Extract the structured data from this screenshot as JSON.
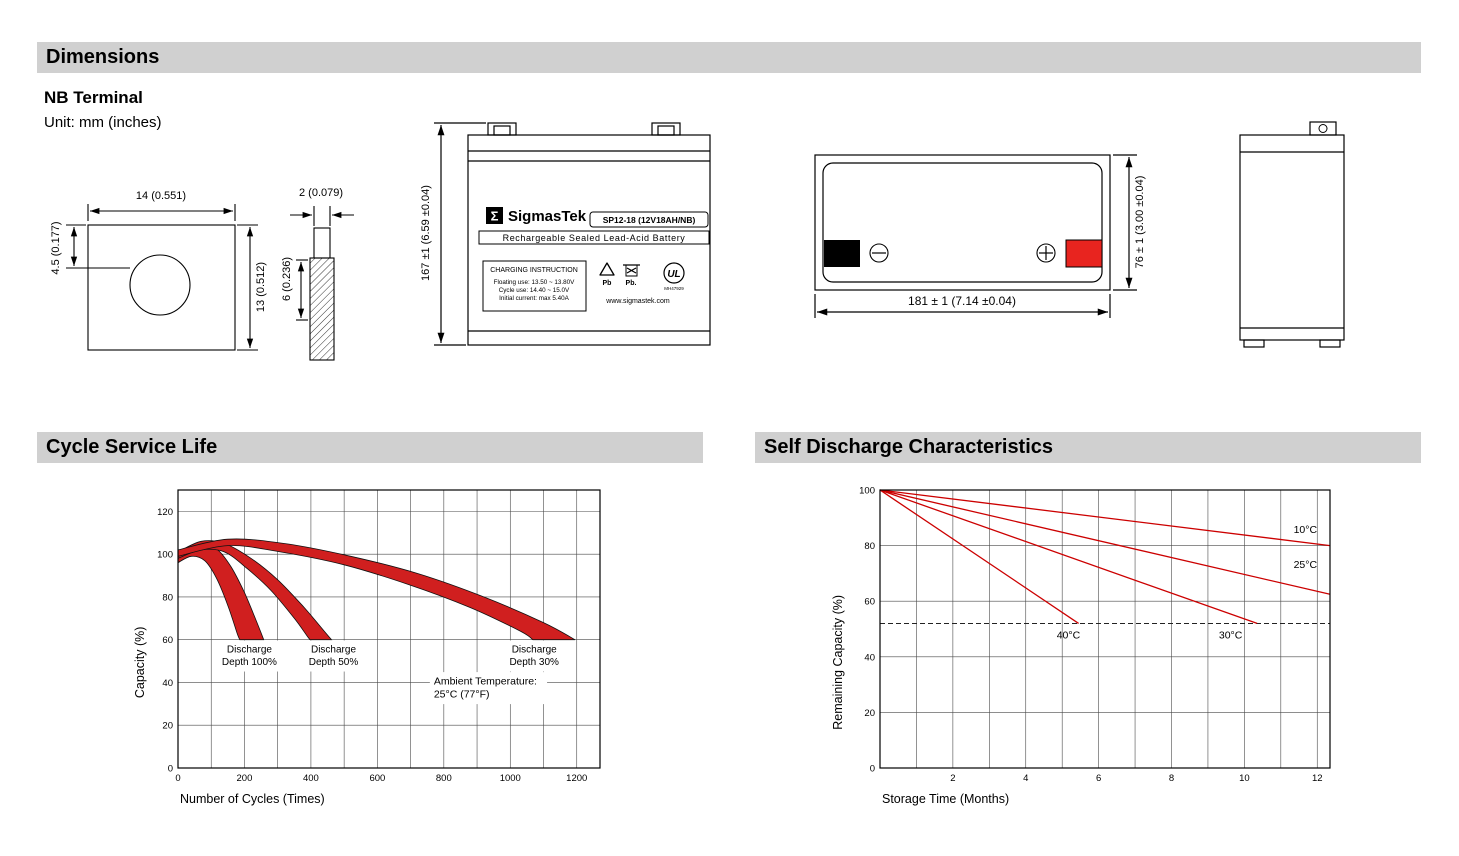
{
  "sections": {
    "dimensions": {
      "title": "Dimensions",
      "subtitle": "NB Terminal",
      "unit_note": "Unit: mm (inches)"
    },
    "cycle_life": {
      "title": "Cycle Service Life"
    },
    "self_discharge": {
      "title": "Self Discharge Characteristics"
    }
  },
  "terminal_front": {
    "width": "14 (0.551)",
    "hole_offset": "4.5 (0.177)",
    "height": "13 (0.512)"
  },
  "terminal_side": {
    "thickness": "2 (0.079)",
    "depth": "6 (0.236)"
  },
  "battery_front": {
    "height_dim": "167 ±1 (6.59 ±0.04)",
    "logo_sigma": "Σ",
    "brand": "SigmasTek",
    "model": "SP12-18 (12V18AH/NB)",
    "subtitle": "Rechargeable Sealed Lead-Acid Battery",
    "charging_title": "CHARGING INSTRUCTION",
    "charging_line1": "Floating use: 13.50 ~ 13.80V",
    "charging_line2": "Cycle use: 14.40 ~ 15.0V",
    "charging_line3": "Initial current: max 5.40A",
    "pb1": "Pb",
    "pb2": "Pb.",
    "ul_mark": "UL",
    "ul_code": "MH47929",
    "website": "www.sigmastek.com"
  },
  "battery_top": {
    "width_dim": "181 ± 1 (7.14 ±0.04)",
    "height_dim": "76 ± 1 (3.00 ±0.04)"
  },
  "chart_data": [
    {
      "id": "chart-cycle-life",
      "type": "area",
      "title": "Cycle Service Life",
      "xlabel": "Number of Cycles (Times)",
      "ylabel": "Capacity (%)",
      "xlim": [
        0,
        1270
      ],
      "ylim": [
        0,
        130
      ],
      "xticks": [
        0,
        200,
        400,
        600,
        800,
        1000,
        1200
      ],
      "yticks": [
        0,
        20,
        40,
        60,
        80,
        100,
        120
      ],
      "xgrid": [
        100,
        100,
        1200
      ],
      "ygrid": [
        20,
        20,
        120
      ],
      "margins": {
        "l": 48,
        "t": 10,
        "r": 30,
        "b": 57
      },
      "band_color": "#d01f1f",
      "bands": [
        {
          "name": "Discharge Depth 100%",
          "upper": [
            [
              0,
              100
            ],
            [
              40,
              104
            ],
            [
              80,
              105
            ],
            [
              120,
              102
            ],
            [
              160,
              94
            ],
            [
              200,
              82
            ],
            [
              235,
              69
            ],
            [
              258,
              60
            ]
          ],
          "lower": [
            [
              0,
              96
            ],
            [
              40,
              99
            ],
            [
              80,
              97
            ],
            [
              115,
              89
            ],
            [
              150,
              76
            ],
            [
              178,
              63
            ],
            [
              186,
              60
            ]
          ]
        },
        {
          "name": "Discharge Depth 50%",
          "upper": [
            [
              0,
              101
            ],
            [
              70,
              106
            ],
            [
              140,
              105
            ],
            [
              220,
              98
            ],
            [
              300,
              88
            ],
            [
              380,
              75
            ],
            [
              440,
              64
            ],
            [
              462,
              60
            ]
          ],
          "lower": [
            [
              0,
              98
            ],
            [
              70,
              102
            ],
            [
              140,
              101
            ],
            [
              210,
              93
            ],
            [
              280,
              83
            ],
            [
              350,
              70
            ],
            [
              392,
              61
            ],
            [
              400,
              60
            ]
          ]
        },
        {
          "name": "Discharge Depth 30%",
          "upper": [
            [
              0,
              102
            ],
            [
              150,
              107
            ],
            [
              320,
              105
            ],
            [
              520,
              99
            ],
            [
              720,
              91
            ],
            [
              920,
              80
            ],
            [
              1100,
              68
            ],
            [
              1195,
              60
            ]
          ],
          "lower": [
            [
              0,
              99
            ],
            [
              150,
              104
            ],
            [
              310,
              101
            ],
            [
              500,
              95
            ],
            [
              690,
              86
            ],
            [
              880,
              75
            ],
            [
              1030,
              64
            ],
            [
              1068,
              60
            ]
          ]
        }
      ],
      "labels": [
        {
          "lines": [
            "Discharge",
            "Depth 100%"
          ],
          "x": 215,
          "y": 54,
          "anchor": "middle",
          "box": true,
          "size": 10
        },
        {
          "lines": [
            "Discharge",
            "Depth 50%"
          ],
          "x": 468,
          "y": 54,
          "anchor": "middle",
          "box": true,
          "size": 10
        },
        {
          "lines": [
            "Discharge",
            "Depth 30%"
          ],
          "x": 1072,
          "y": 54,
          "anchor": "middle",
          "box": true,
          "size": 10
        },
        {
          "lines": [
            "Ambient Temperature:",
            "25°C (77°F)"
          ],
          "x": 770,
          "y": 39,
          "anchor": "start",
          "box": true,
          "size": 10.5
        }
      ]
    },
    {
      "id": "chart-self-discharge",
      "type": "line",
      "title": "Self Discharge Characteristics",
      "xlabel": "Storage Time (Months)",
      "ylabel": "Remaining Capacity (%)",
      "xlim": [
        0,
        12.35
      ],
      "ylim": [
        0,
        100
      ],
      "xticks": [
        2,
        4,
        6,
        8,
        10,
        12
      ],
      "yticks": [
        0,
        20,
        40,
        60,
        80,
        100
      ],
      "xgrid": [
        1,
        1,
        12
      ],
      "ygrid": [
        20,
        20,
        80
      ],
      "margins": {
        "l": 52,
        "t": 10,
        "r": 28,
        "b": 57
      },
      "line_color": "#cc0000",
      "dash_y": 52,
      "series": [
        {
          "name": "10°C",
          "points": [
            [
              0,
              100
            ],
            [
              12.35,
              80
            ]
          ],
          "label": {
            "x": 11.35,
            "y": 84.5
          }
        },
        {
          "name": "25°C",
          "points": [
            [
              0,
              100
            ],
            [
              12.35,
              62.5
            ]
          ],
          "label": {
            "x": 11.35,
            "y": 72
          }
        },
        {
          "name": "30°C",
          "points": [
            [
              0,
              100
            ],
            [
              10.35,
              52
            ]
          ],
          "label": {
            "x": 9.3,
            "y": 46.5
          }
        },
        {
          "name": "40°C",
          "points": [
            [
              0,
              100
            ],
            [
              5.45,
              52
            ]
          ],
          "label": {
            "x": 4.85,
            "y": 46.5
          }
        }
      ]
    }
  ]
}
